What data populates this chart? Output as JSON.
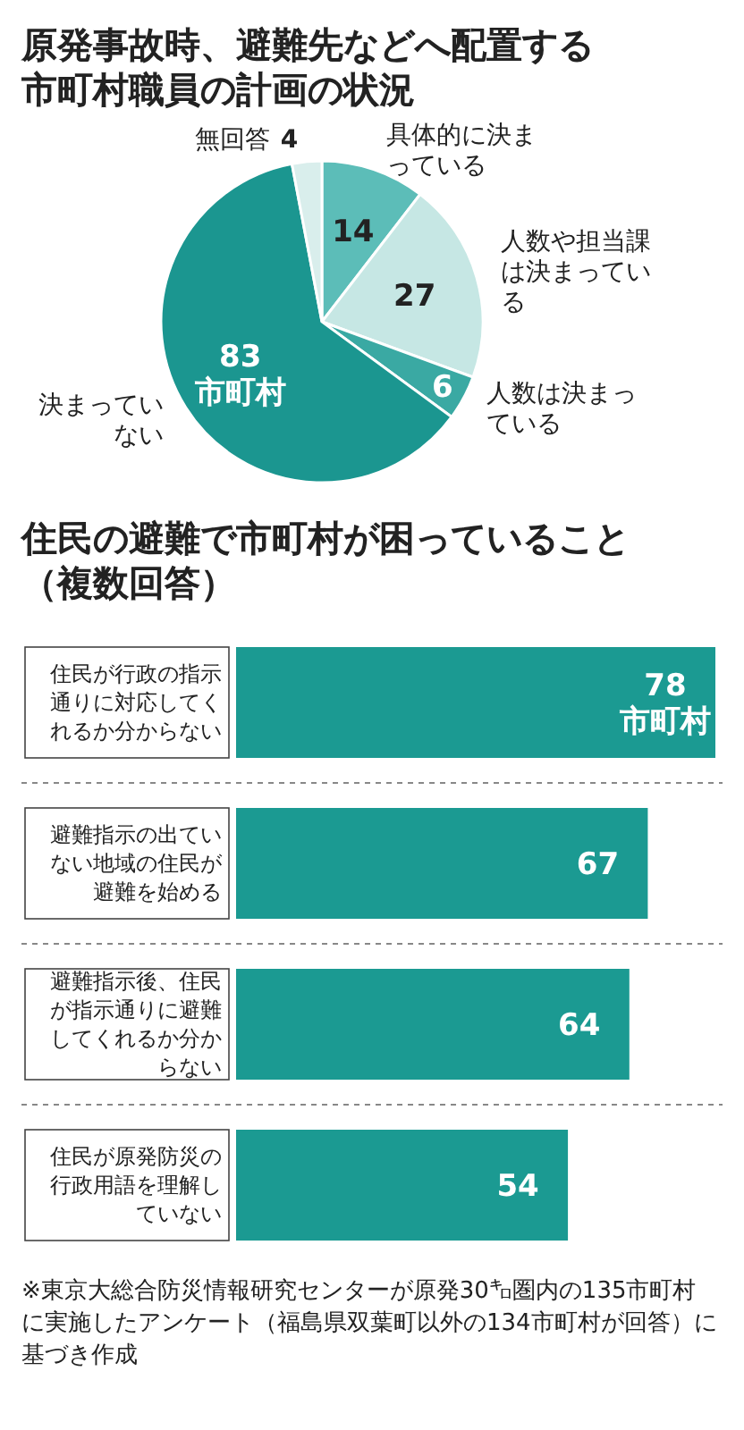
{
  "chart_data": [
    {
      "type": "pie",
      "title": "原発事故時、避難先などへ配置する市町村職員の計画の状況",
      "categories": [
        "具体的に決まっている",
        "人数や担当課は決まっている",
        "人数は決まっている",
        "決まっていない",
        "無回答"
      ],
      "values": [
        14,
        27,
        6,
        83,
        4
      ],
      "colors": [
        "#5cbdb8",
        "#c6e7e4",
        "#3aa9a3",
        "#1b9690",
        "#d9eeec"
      ],
      "value_labels": [
        "14",
        "27",
        "6",
        "83市町村",
        "4"
      ]
    },
    {
      "type": "bar",
      "orientation": "horizontal",
      "title": "住民の避難で市町村が困っていること（複数回答）",
      "categories": [
        "住民が行政の指示通りに対応してくれるか分からない",
        "避難指示の出ていない地域の住民が避難を始める",
        "避難指示後、住民が指示通りに避難してくれるか分からない",
        "住民が原発防災の行政用語を理解していない"
      ],
      "values": [
        78,
        67,
        64,
        54
      ],
      "color": "#1b9a92",
      "value_labels": [
        "78市町村",
        "67",
        "64",
        "54"
      ],
      "annotations": [
        "※東京大総合防災情報研究センターが原発30㌔圏内の135市町村に実施したアンケート（福島県双葉町以外の134市町村が回答）に基づき作成"
      ]
    }
  ]
}
